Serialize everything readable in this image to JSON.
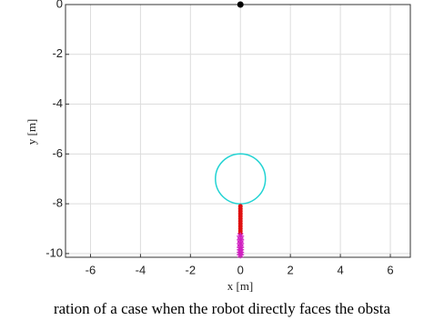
{
  "chart_data": {
    "type": "scatter",
    "xlabel": "x [m]",
    "ylabel": "y [m]",
    "caption": "ration of a case when the robot directly faces the obsta",
    "xlim": [
      -7,
      6.8
    ],
    "ylim": [
      -10.15,
      0
    ],
    "xticks": [
      -6,
      -4,
      -2,
      0,
      2,
      4,
      6
    ],
    "yticks": [
      0,
      -2,
      -4,
      -6,
      -8,
      -10
    ],
    "grid": true,
    "obstacle": {
      "cx": 0,
      "cy": -7,
      "r": 1,
      "color": "#22d3d3"
    },
    "series": [
      {
        "color": "#000000",
        "marker": "dot",
        "x": [
          0
        ],
        "y": [
          0
        ]
      },
      {
        "color": "#e01010",
        "marker": "dot",
        "x": [
          0,
          0,
          0,
          0,
          0,
          0,
          0,
          0,
          0,
          0,
          0,
          0
        ],
        "y": [
          -8.1,
          -8.2,
          -8.3,
          -8.4,
          -8.5,
          -8.6,
          -8.7,
          -8.8,
          -8.9,
          -9.0,
          -9.1,
          -9.2
        ]
      },
      {
        "color": "#d020c0",
        "marker": "star",
        "x": [
          0,
          0,
          0,
          0,
          0,
          0,
          0
        ],
        "y": [
          -9.3,
          -9.45,
          -9.6,
          -9.75,
          -9.85,
          -9.95,
          -10.05
        ]
      }
    ]
  }
}
